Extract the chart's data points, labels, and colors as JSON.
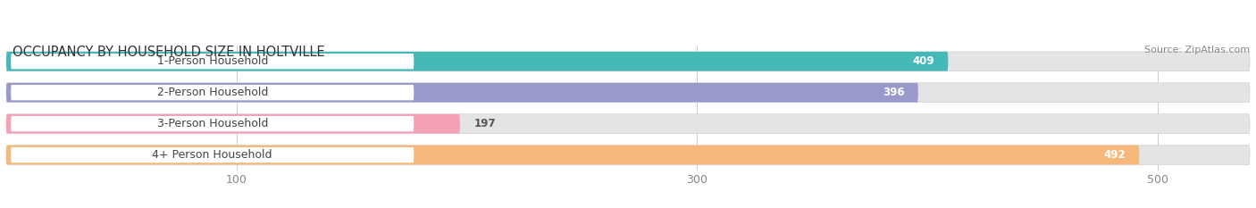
{
  "title": "OCCUPANCY BY HOUSEHOLD SIZE IN HOLTVILLE",
  "source": "Source: ZipAtlas.com",
  "categories": [
    "1-Person Household",
    "2-Person Household",
    "3-Person Household",
    "4+ Person Household"
  ],
  "values": [
    409,
    396,
    197,
    492
  ],
  "bar_colors": [
    "#45b8b8",
    "#9999cc",
    "#f4a0b5",
    "#f5b87a"
  ],
  "track_color": "#e4e4e4",
  "track_border_color": "#d0d0d0",
  "label_bg_color": "#ffffff",
  "xmin": 0,
  "xmax": 540,
  "xticks": [
    100,
    300,
    500
  ],
  "bar_height": 0.62,
  "title_fontsize": 10.5,
  "source_fontsize": 8,
  "label_fontsize": 9,
  "value_fontsize": 8.5,
  "tick_fontsize": 9,
  "fig_width": 14.06,
  "fig_height": 2.33,
  "dpi": 100
}
